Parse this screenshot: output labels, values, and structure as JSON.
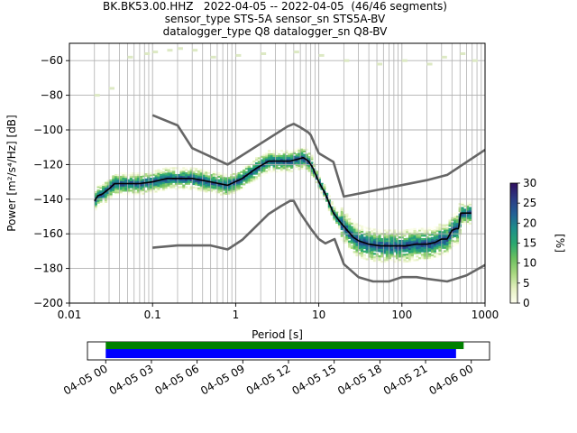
{
  "title_lines": [
    "BK.BK53.00.HHZ   2022-04-05 -- 2022-04-05  (46/46 segments)",
    "sensor_type STS-5A sensor_sn STS5A-BV",
    "datalogger_type Q8 datalogger_sn Q8-BV"
  ],
  "chart_data": [
    {
      "type": "heatmap",
      "title": "BK.BK53.00.HHZ   2022-04-05 -- 2022-04-05  (46/46 segments)",
      "xlabel": "Period [s]",
      "ylabel": "Power [m²/s⁴/Hz] [dB]",
      "x_scale": "log",
      "xlim": [
        0.01,
        1000
      ],
      "ylim": [
        -200,
        -50
      ],
      "x_ticks": [
        0.01,
        0.1,
        1,
        10,
        100,
        1000
      ],
      "x_tick_labels": [
        "0.01",
        "0.1",
        "1",
        "10",
        "100",
        "1000"
      ],
      "y_ticks": [
        -200,
        -180,
        -160,
        -140,
        -120,
        -100,
        -80,
        -60
      ],
      "y_tick_labels": [
        "−200",
        "−180",
        "−160",
        "−140",
        "−120",
        "−100",
        "−80",
        "−60"
      ],
      "grid": true,
      "colorbar": {
        "label": "[%]",
        "range": [
          0,
          30
        ],
        "ticks": [
          0,
          5,
          10,
          15,
          20,
          25,
          30
        ],
        "colormap": [
          "#fffff0",
          "#e4f0c0",
          "#a8d880",
          "#6cc060",
          "#2aa870",
          "#1e8e8a",
          "#235f96",
          "#2c3a84",
          "#301060"
        ]
      },
      "series": [
        {
          "name": "mean",
          "color": "#000000",
          "x": [
            0.02,
            0.022,
            0.025,
            0.03,
            0.035,
            0.05,
            0.07,
            0.1,
            0.15,
            0.2,
            0.3,
            0.5,
            0.8,
            1.2,
            1.8,
            2.5,
            3.5,
            4.5,
            5.5,
            6.5,
            7.5,
            8.5,
            10,
            12,
            15,
            18,
            22,
            26,
            30,
            40,
            55,
            80,
            110,
            150,
            200,
            250,
            300,
            350,
            400,
            450,
            480,
            510,
            560,
            620,
            680
          ],
          "y": [
            -141,
            -138,
            -137,
            -134,
            -131,
            -131,
            -131,
            -130,
            -128,
            -128,
            -128,
            -130,
            -132,
            -128,
            -122,
            -118,
            -118,
            -118,
            -117,
            -116,
            -118,
            -122,
            -130,
            -137,
            -148,
            -153,
            -158,
            -162,
            -164,
            -166,
            -167,
            -167,
            -167,
            -166,
            -166,
            -165,
            -163,
            -163,
            -158,
            -157,
            -157,
            -148,
            -148,
            -148,
            -148
          ]
        },
        {
          "name": "model-high",
          "color": "#666666",
          "x": [
            0.1,
            0.2,
            0.3,
            0.8,
            4.2,
            5,
            6,
            7.5,
            8,
            10,
            15,
            20,
            200,
            350,
            1000
          ],
          "y": [
            -91.5,
            -97.4,
            -110.5,
            -120,
            -98,
            -96.5,
            -98.5,
            -101.5,
            -103,
            -113.5,
            -118.5,
            -138.5,
            -129,
            -126,
            -111.5
          ]
        },
        {
          "name": "model-low",
          "color": "#666666",
          "x": [
            0.1,
            0.2,
            0.5,
            0.8,
            1.2,
            2.5,
            3.5,
            4.5,
            5,
            6,
            8,
            10,
            12,
            15.5,
            20,
            30,
            45,
            70,
            100,
            150,
            200,
            350,
            600,
            1000
          ],
          "y": [
            -168,
            -166.7,
            -166.7,
            -169,
            -163.5,
            -148.5,
            -144,
            -141,
            -141,
            -148,
            -157,
            -163,
            -165.5,
            -163,
            -177.5,
            -185,
            -187.5,
            -187.5,
            -185,
            -185,
            -186,
            -187.5,
            -184,
            -178
          ]
        }
      ],
      "upper_scatter": {
        "x": [
          0.02,
          0.03,
          0.05,
          0.08,
          0.1,
          0.15,
          0.2,
          0.3,
          0.5,
          1,
          2,
          5,
          10,
          20,
          50,
          100,
          200,
          300,
          500,
          700
        ],
        "y": [
          -80,
          -76,
          -58,
          -56,
          -55,
          -54,
          -53,
          -54,
          -58,
          -57,
          -56,
          -55,
          -57,
          -60,
          -62,
          -60,
          -62,
          -58,
          -56,
          -60
        ]
      }
    },
    {
      "type": "bar",
      "x_tick_labels": [
        "04-05 00",
        "04-05 03",
        "04-05 06",
        "04-05 09",
        "04-05 12",
        "04-05 15",
        "04-05 18",
        "04-05 21",
        "04-06 00"
      ],
      "x_hours": [
        0,
        3,
        6,
        9,
        12,
        15,
        18,
        21,
        24
      ],
      "xlim_hours": [
        -1.2,
        25.2
      ],
      "series": [
        {
          "name": "data coverage",
          "color": "#008000",
          "start_hour": 0,
          "end_hour": 23.5
        },
        {
          "name": "psd segments",
          "color": "#0000ff",
          "start_hour": 0,
          "end_hour": 23.0
        }
      ]
    }
  ]
}
